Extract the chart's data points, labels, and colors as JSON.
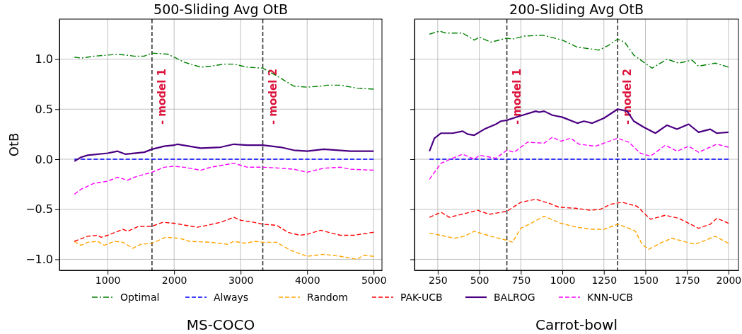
{
  "chart_data": [
    {
      "type": "line",
      "title": "500-Sliding Avg OtB",
      "xlabel": "MS-COCO",
      "ylabel": "OtB",
      "xlim": [
        275,
        5125
      ],
      "xticks": [
        1000,
        2000,
        3000,
        4000,
        5000
      ],
      "ylim": [
        -1.11,
        1.4
      ],
      "yticks": [
        {
          "value": -1,
          "label": "−1.0"
        },
        {
          "value": -0.5,
          "label": "−0.5"
        },
        {
          "value": 0,
          "label": "0.0"
        },
        {
          "value": 0.5,
          "label": "0.5"
        },
        {
          "value": 1,
          "label": "1.0"
        }
      ],
      "grid": true,
      "legend": "bottom",
      "ref_lines": [
        {
          "axis": "x",
          "value": 1667,
          "label": "- model 1",
          "color": "#333333",
          "line_style": "dashed"
        },
        {
          "axis": "x",
          "value": 3333,
          "label": "- model 2",
          "color": "#333333",
          "line_style": "dashed"
        }
      ],
      "series": [
        {
          "name": "Optimal",
          "color": "#008000",
          "line_style": "dashdot",
          "x": [
            500,
            600,
            800,
            1000,
            1150,
            1400,
            1550,
            1667,
            1900,
            2000,
            2150,
            2400,
            2550,
            2750,
            2900,
            3100,
            3333,
            3550,
            3800,
            4000,
            4200,
            4300,
            4500,
            4750,
            5000
          ],
          "values": [
            1.02,
            1.01,
            1.03,
            1.04,
            1.05,
            1.03,
            1.03,
            1.06,
            1.05,
            1.02,
            0.97,
            0.92,
            0.93,
            0.95,
            0.95,
            0.92,
            0.91,
            0.83,
            0.73,
            0.72,
            0.73,
            0.74,
            0.74,
            0.71,
            0.7
          ]
        },
        {
          "name": "Always",
          "color": "#0000ff",
          "line_style": "dashed",
          "x": [
            500,
            5000
          ],
          "values": [
            0,
            0
          ]
        },
        {
          "name": "Random",
          "color": "#ffa500",
          "line_style": "dashed",
          "x": [
            500,
            600,
            700,
            850,
            950,
            1100,
            1230,
            1380,
            1500,
            1667,
            1870,
            2080,
            2230,
            2550,
            2800,
            2900,
            3070,
            3220,
            3333,
            3540,
            3750,
            4000,
            4250,
            4500,
            4750,
            4850,
            5000
          ],
          "values": [
            -0.82,
            -0.86,
            -0.83,
            -0.82,
            -0.86,
            -0.82,
            -0.83,
            -0.89,
            -0.85,
            -0.84,
            -0.78,
            -0.79,
            -0.82,
            -0.83,
            -0.85,
            -0.82,
            -0.84,
            -0.82,
            -0.83,
            -0.83,
            -0.91,
            -0.97,
            -0.95,
            -0.97,
            -1.0,
            -0.96,
            -0.97
          ]
        },
        {
          "name": "PAK-UCB",
          "color": "#ff0000",
          "line_style": "dashed",
          "x": [
            500,
            700,
            850,
            900,
            1000,
            1230,
            1300,
            1470,
            1667,
            1830,
            2000,
            2350,
            2500,
            2700,
            2900,
            3000,
            3200,
            3333,
            3540,
            3710,
            3890,
            4000,
            4200,
            4500,
            4700,
            5000
          ],
          "values": [
            -0.82,
            -0.77,
            -0.76,
            -0.78,
            -0.76,
            -0.7,
            -0.72,
            -0.67,
            -0.67,
            -0.63,
            -0.64,
            -0.68,
            -0.66,
            -0.63,
            -0.58,
            -0.61,
            -0.63,
            -0.65,
            -0.66,
            -0.73,
            -0.76,
            -0.75,
            -0.71,
            -0.76,
            -0.76,
            -0.73
          ]
        },
        {
          "name": "BALROG",
          "color": "#4b0082",
          "line_style": "solid",
          "x": [
            500,
            600,
            700,
            1000,
            1150,
            1270,
            1550,
            1667,
            1850,
            2000,
            2050,
            2400,
            2700,
            2900,
            3100,
            3333,
            3600,
            3800,
            4000,
            4250,
            4650,
            5000
          ],
          "values": [
            -0.02,
            0.02,
            0.04,
            0.06,
            0.08,
            0.05,
            0.07,
            0.1,
            0.13,
            0.14,
            0.15,
            0.11,
            0.12,
            0.15,
            0.14,
            0.14,
            0.12,
            0.09,
            0.08,
            0.1,
            0.08,
            0.08
          ]
        },
        {
          "name": "KNN-UCB",
          "color": "#ff00ff",
          "line_style": "dashed",
          "x": [
            500,
            600,
            800,
            1000,
            1150,
            1300,
            1400,
            1667,
            1850,
            2000,
            2150,
            2400,
            2550,
            2900,
            3100,
            3333,
            3600,
            3800,
            4000,
            4250,
            4500,
            4650,
            5000
          ],
          "values": [
            -0.35,
            -0.3,
            -0.24,
            -0.22,
            -0.18,
            -0.21,
            -0.18,
            -0.13,
            -0.08,
            -0.07,
            -0.08,
            -0.11,
            -0.08,
            -0.04,
            -0.08,
            -0.08,
            -0.09,
            -0.1,
            -0.13,
            -0.09,
            -0.08,
            -0.1,
            -0.11
          ]
        }
      ]
    },
    {
      "type": "line",
      "title": "200-Sliding Avg OtB",
      "xlabel": "Carrot-bowl",
      "xlim": [
        110,
        2060
      ],
      "xticks": [
        250,
        500,
        750,
        1000,
        1250,
        1500,
        1750,
        2000
      ],
      "ylim": [
        -1.11,
        1.4
      ],
      "yticks": [
        -1,
        -0.5,
        0,
        0.5,
        1
      ],
      "tick_labels": "x",
      "grid": true,
      "ref_lines": [
        {
          "axis": "x",
          "value": 666,
          "label": "- model 1",
          "color": "#333333",
          "line_style": "dashed"
        },
        {
          "axis": "x",
          "value": 1333,
          "label": "- model 2",
          "color": "#333333",
          "line_style": "dashed"
        }
      ],
      "series": [
        {
          "color": "#008000",
          "line_style": "dashdot",
          "x": [
            200,
            260,
            300,
            400,
            470,
            500,
            570,
            666,
            700,
            770,
            880,
            1000,
            1090,
            1180,
            1220,
            1280,
            1333,
            1375,
            1430,
            1540,
            1630,
            1700,
            1780,
            1820,
            1920,
            2000
          ],
          "values": [
            1.25,
            1.28,
            1.26,
            1.26,
            1.19,
            1.22,
            1.17,
            1.21,
            1.2,
            1.23,
            1.24,
            1.19,
            1.12,
            1.1,
            1.09,
            1.14,
            1.2,
            1.17,
            1.04,
            0.91,
            1.0,
            0.96,
            0.99,
            0.93,
            0.96,
            0.92
          ]
        },
        {
          "color": "#0000ff",
          "line_style": "dashed",
          "x": [
            200,
            2000
          ],
          "values": [
            0,
            0
          ]
        },
        {
          "color": "#ffa500",
          "line_style": "dashed",
          "x": [
            200,
            270,
            350,
            410,
            470,
            570,
            666,
            700,
            750,
            800,
            890,
            990,
            1090,
            1180,
            1250,
            1333,
            1400,
            1440,
            1480,
            1520,
            1600,
            1660,
            1750,
            1800,
            1920,
            2000
          ],
          "values": [
            -0.74,
            -0.76,
            -0.79,
            -0.77,
            -0.72,
            -0.77,
            -0.81,
            -0.83,
            -0.69,
            -0.65,
            -0.57,
            -0.64,
            -0.68,
            -0.7,
            -0.7,
            -0.65,
            -0.69,
            -0.72,
            -0.85,
            -0.9,
            -0.83,
            -0.79,
            -0.83,
            -0.85,
            -0.77,
            -0.84
          ]
        },
        {
          "color": "#ff0000",
          "line_style": "dashed",
          "x": [
            200,
            270,
            320,
            420,
            490,
            560,
            666,
            750,
            840,
            920,
            980,
            1080,
            1170,
            1230,
            1290,
            1360,
            1450,
            1530,
            1620,
            1700,
            1820,
            1890,
            1930,
            2000
          ],
          "values": [
            -0.58,
            -0.53,
            -0.58,
            -0.54,
            -0.51,
            -0.55,
            -0.52,
            -0.43,
            -0.4,
            -0.44,
            -0.48,
            -0.49,
            -0.51,
            -0.5,
            -0.45,
            -0.43,
            -0.47,
            -0.6,
            -0.56,
            -0.59,
            -0.69,
            -0.65,
            -0.59,
            -0.64
          ]
        },
        {
          "color": "#4b0082",
          "line_style": "solid",
          "x": [
            200,
            230,
            270,
            340,
            400,
            430,
            470,
            530,
            600,
            630,
            666,
            740,
            840,
            860,
            890,
            940,
            1000,
            1090,
            1130,
            1180,
            1250,
            1333,
            1390,
            1430,
            1490,
            1560,
            1630,
            1690,
            1760,
            1820,
            1890,
            1930,
            2000
          ],
          "values": [
            0.08,
            0.21,
            0.26,
            0.26,
            0.28,
            0.25,
            0.24,
            0.3,
            0.35,
            0.38,
            0.39,
            0.43,
            0.48,
            0.47,
            0.48,
            0.44,
            0.42,
            0.36,
            0.38,
            0.36,
            0.41,
            0.5,
            0.48,
            0.38,
            0.32,
            0.26,
            0.34,
            0.3,
            0.35,
            0.27,
            0.3,
            0.26,
            0.27
          ]
        },
        {
          "color": "#ff00ff",
          "line_style": "dashed",
          "x": [
            200,
            270,
            340,
            400,
            470,
            500,
            600,
            666,
            710,
            790,
            890,
            940,
            990,
            1050,
            1100,
            1200,
            1333,
            1400,
            1470,
            1530,
            1620,
            1690,
            1760,
            1820,
            1930,
            2000
          ],
          "values": [
            -0.2,
            -0.04,
            0.01,
            0.05,
            0.0,
            0.04,
            0.01,
            0.09,
            0.07,
            0.17,
            0.16,
            0.22,
            0.18,
            0.21,
            0.15,
            0.13,
            0.21,
            0.17,
            0.06,
            0.03,
            0.14,
            0.08,
            0.13,
            0.07,
            0.15,
            0.12
          ]
        }
      ]
    }
  ]
}
